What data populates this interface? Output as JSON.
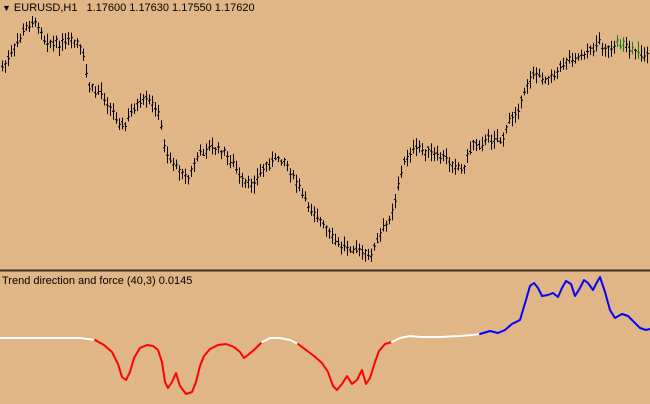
{
  "price_pane": {
    "symbol": "EURUSD,H1",
    "ohlc": [
      "1.17600",
      "1.17630",
      "1.17550",
      "1.17620"
    ],
    "dropdown_icon": "triangle-down-icon",
    "candle_color": "#000000",
    "accent_candle_color": "#1a7a1a"
  },
  "indicator_pane": {
    "title": "Trend direction and force (40,3) 0.0145",
    "colors": {
      "neutral": "#ffffff",
      "down": "#ff0000",
      "up": "#0000ff"
    }
  },
  "background": "#e0b686",
  "separator_color": "#3c3024"
}
